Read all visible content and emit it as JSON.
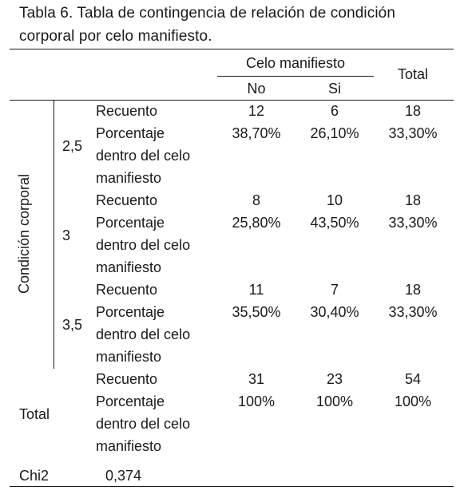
{
  "caption": {
    "line1": "Tabla 6. Tabla de contingencia de relación de condición",
    "line2": "corporal por celo manifiesto."
  },
  "header": {
    "group": "Celo manifiesto",
    "no": "No",
    "si": "Si",
    "total": "Total"
  },
  "row_group_label": "Condición corporal",
  "stat_labels": {
    "count": "Recuento",
    "pct1": "Porcentaje",
    "pct2": "dentro del celo",
    "pct3": "manifiesto"
  },
  "rows": [
    {
      "level": "2,5",
      "count": {
        "no": "12",
        "si": "6",
        "total": "18"
      },
      "pct": {
        "no": "38,70%",
        "si": "26,10%",
        "total": "33,30%"
      }
    },
    {
      "level": "3",
      "count": {
        "no": "8",
        "si": "10",
        "total": "18"
      },
      "pct": {
        "no": "25,80%",
        "si": "43,50%",
        "total": "33,30%"
      }
    },
    {
      "level": "3,5",
      "count": {
        "no": "11",
        "si": "7",
        "total": "18"
      },
      "pct": {
        "no": "35,50%",
        "si": "30,40%",
        "total": "33,30%"
      }
    }
  ],
  "total_row": {
    "label": "Total",
    "count": {
      "no": "31",
      "si": "23",
      "total": "54"
    },
    "pct": {
      "no": "100%",
      "si": "100%",
      "total": "100%"
    }
  },
  "chi2": {
    "label": "Chi2",
    "value": "0,374"
  }
}
